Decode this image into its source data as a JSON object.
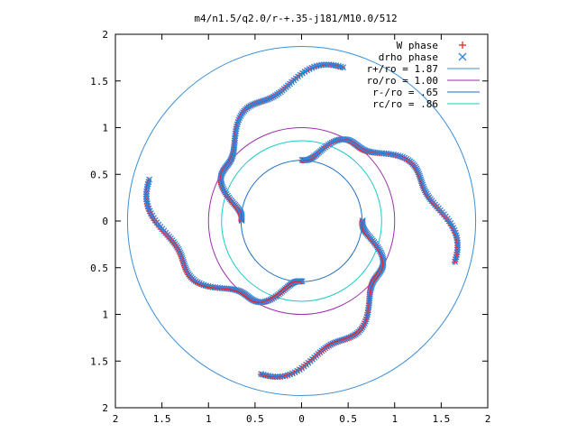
{
  "chart_data": {
    "type": "scatter",
    "title": "m4/n1.5/q2.0/r-+.35-j181/M10.0/512",
    "xlim": [
      -2,
      2
    ],
    "ylim": [
      -2,
      2
    ],
    "x_ticks": [
      -2,
      -1.5,
      -1,
      -0.5,
      0,
      0.5,
      1,
      1.5,
      2
    ],
    "y_ticks": [
      -2,
      -1.5,
      -1,
      -0.5,
      0,
      0.5,
      1,
      1.5,
      2
    ],
    "x_tick_labels": [
      "2",
      "1.5",
      "1",
      "0.5",
      "0",
      "0.5",
      "1",
      "1.5",
      "2"
    ],
    "y_tick_labels": [
      "2",
      "1.5",
      "1",
      "0.5",
      "0",
      "0.5",
      "1",
      "1.5",
      "2"
    ],
    "grid": false,
    "legend_position": "top-right",
    "circles": [
      {
        "label": "r+/ro = 1.87",
        "radius": 1.87,
        "color": "#3b8fd6"
      },
      {
        "label": "ro/ro = 1.00",
        "radius": 1.0,
        "color": "#9b2fae"
      },
      {
        "label": "r-/ro = .65",
        "radius": 0.65,
        "color": "#1f6fc0"
      },
      {
        "label": "rc/ro = .86",
        "radius": 0.86,
        "color": "#1ec8c8"
      }
    ],
    "series": [
      {
        "name": "W phase",
        "marker": "plus",
        "color": "#e8262a"
      },
      {
        "name": "drho phase",
        "marker": "cross",
        "color": "#2f86e0"
      }
    ],
    "arms": [
      {
        "angle_start_deg": 75,
        "angle_end_deg": 180,
        "r_outer": 1.7,
        "r_inner": 0.65
      },
      {
        "angle_start_deg": 165,
        "angle_end_deg": 270,
        "r_outer": 1.7,
        "r_inner": 0.65
      },
      {
        "angle_start_deg": 255,
        "angle_end_deg": 360,
        "r_outer": 1.7,
        "r_inner": 0.65
      },
      {
        "angle_start_deg": 345,
        "angle_end_deg": 450,
        "r_outer": 1.7,
        "r_inner": 0.65
      }
    ]
  }
}
